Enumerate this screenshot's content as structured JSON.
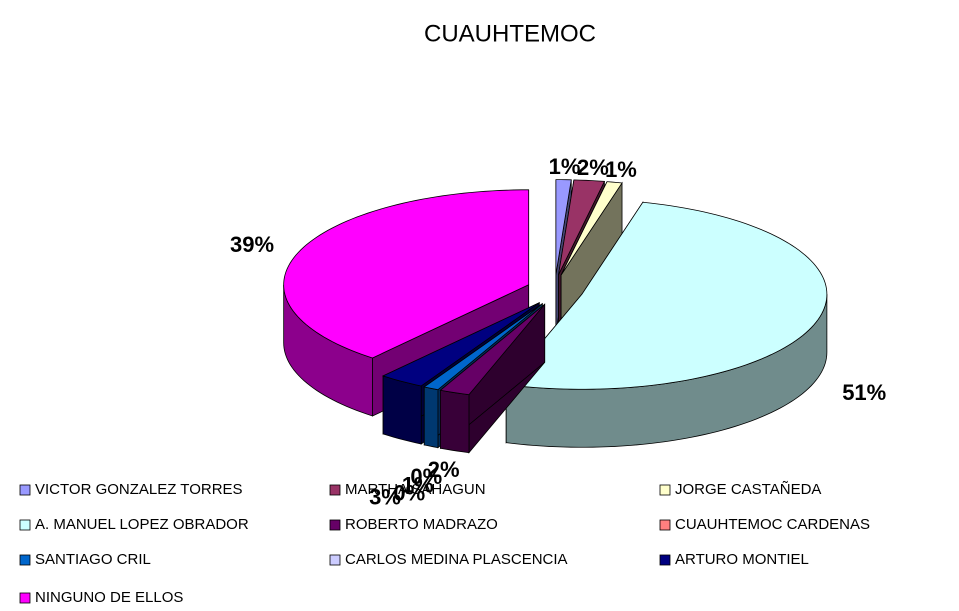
{
  "chart_data": {
    "type": "pie",
    "title": "CUAUHTEMOC",
    "categories": [
      "VICTOR GONZALEZ TORRES",
      "MARTHA SAHAGUN",
      "JORGE CASTAÑEDA",
      "A. MANUEL LOPEZ OBRADOR",
      "ROBERTO MADRAZO",
      "CUAUHTEMOC CARDENAS",
      "SANTIAGO CRIL",
      "CARLOS MEDINA PLASCENCIA",
      "ARTURO MONTIEL",
      "NINGUNO DE ELLOS"
    ],
    "values": [
      1,
      2,
      1,
      51,
      2,
      0,
      1,
      0,
      3,
      39
    ],
    "value_labels": [
      "1%",
      "2%",
      "1%",
      "51%",
      "2%",
      "0%",
      "1%",
      "0%",
      "3%",
      "39%"
    ],
    "colors": [
      "#9999ff",
      "#993366",
      "#ffffcc",
      "#ccffff",
      "#660066",
      "#ff8080",
      "#0066cc",
      "#ccccff",
      "#000080",
      "#ff00ff"
    ],
    "legend": "bottom"
  }
}
